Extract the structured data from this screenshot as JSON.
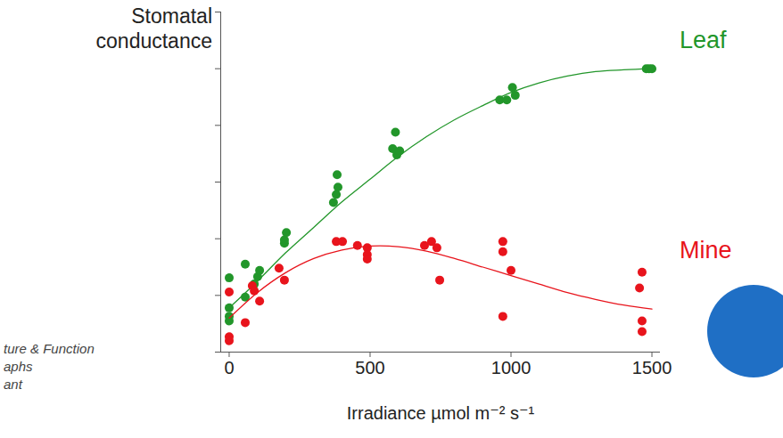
{
  "chart_data": {
    "type": "scatter",
    "ylabel": "Stomatal conductance",
    "xlabel": "Irradiance µmol m⁻² s⁻¹",
    "annotations": [
      "ture & Function",
      "aphs",
      "ant"
    ],
    "xlim": [
      -30,
      1530
    ],
    "xticks": [
      0,
      500,
      1000,
      1500
    ],
    "ylim": [
      0,
      6
    ],
    "yticks": [
      0,
      1,
      2,
      3,
      4,
      5,
      6
    ],
    "tick_labels": "x",
    "grid": false,
    "legend": "right",
    "series": [
      {
        "name": "Leaf",
        "color": "#22962a",
        "marker": "circle",
        "line_style": "solid",
        "x": [
          0,
          0,
          0,
          0,
          57,
          57,
          89,
          101,
          108,
          196,
          196,
          203,
          370,
          380,
          386,
          383,
          580,
          590,
          595,
          605,
          960,
          985,
          1005,
          1015,
          1480,
          1490,
          1500
        ],
        "values": [
          1.31,
          0.78,
          0.63,
          0.55,
          1.55,
          0.97,
          1.2,
          1.33,
          1.44,
          1.92,
          1.98,
          2.11,
          2.64,
          2.78,
          2.91,
          3.13,
          3.59,
          3.88,
          3.48,
          3.55,
          4.45,
          4.45,
          4.67,
          4.53,
          5.0,
          5.0,
          5.0
        ],
        "fit": {
          "x": [
            0,
            100,
            200,
            300,
            400,
            500,
            600,
            700,
            800,
            900,
            1000,
            1100,
            1200,
            1300,
            1400,
            1500
          ],
          "values": [
            0.78,
            1.25,
            1.75,
            2.2,
            2.65,
            3.05,
            3.45,
            3.8,
            4.1,
            4.35,
            4.58,
            4.75,
            4.87,
            4.95,
            4.98,
            5.0
          ]
        }
      },
      {
        "name": "Mine",
        "color": "#e8141c",
        "marker": "circle",
        "line_style": "solid",
        "x": [
          0,
          0,
          0,
          57,
          82,
          89,
          108,
          177,
          196,
          380,
          402,
          455,
          490,
          490,
          490,
          693,
          718,
          737,
          747,
          971,
          971,
          971,
          1000,
          1465,
          1456,
          1465,
          1465
        ],
        "values": [
          1.06,
          0.27,
          0.2,
          0.52,
          1.17,
          1.08,
          0.9,
          1.48,
          1.27,
          1.95,
          1.95,
          1.88,
          1.84,
          1.72,
          1.64,
          1.88,
          1.95,
          1.84,
          1.27,
          1.95,
          1.77,
          0.63,
          1.44,
          1.41,
          1.13,
          0.55,
          0.36
        ],
        "fit": {
          "x": [
            0,
            100,
            200,
            300,
            400,
            500,
            600,
            700,
            800,
            900,
            1000,
            1100,
            1200,
            1300,
            1400,
            1500
          ],
          "values": [
            0.6,
            1.05,
            1.4,
            1.65,
            1.8,
            1.87,
            1.86,
            1.78,
            1.65,
            1.5,
            1.35,
            1.2,
            1.05,
            0.93,
            0.83,
            0.76
          ]
        }
      }
    ]
  }
}
